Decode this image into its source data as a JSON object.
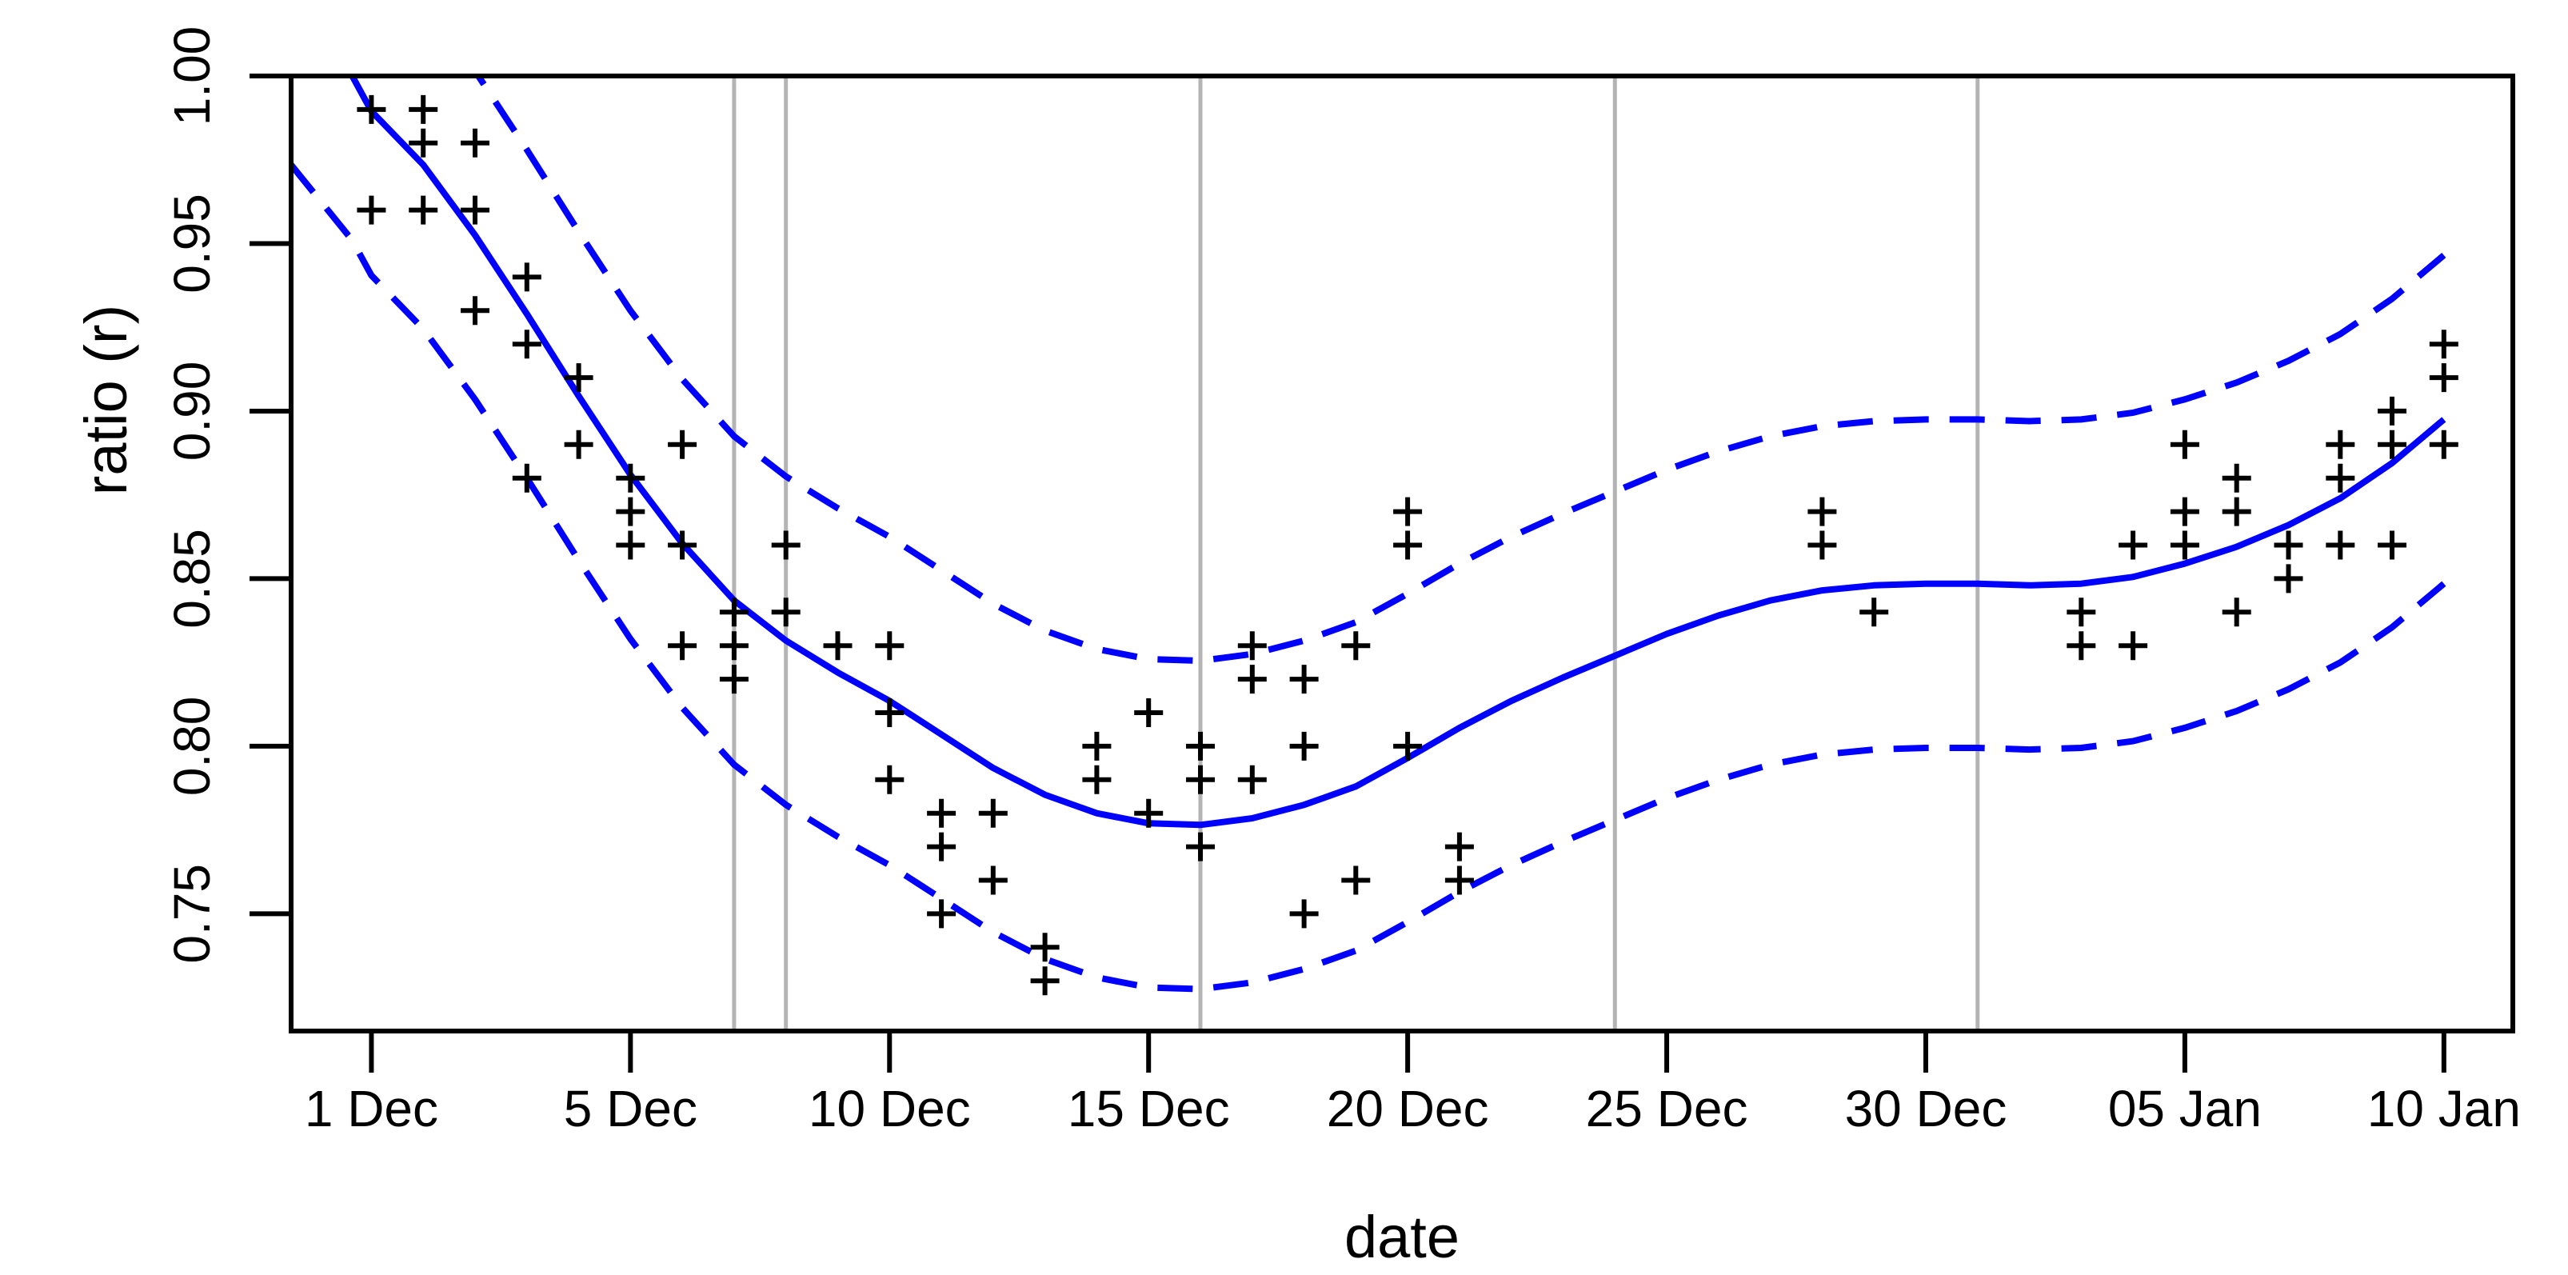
{
  "chart_data": {
    "type": "scatter",
    "title": "",
    "xlabel": "date",
    "ylabel": "ratio (r)",
    "x_unit": "day index (1 = first x tick)",
    "x_tick_labels": [
      "1 Dec",
      "5 Dec",
      "10 Dec",
      "15 Dec",
      "20 Dec",
      "25 Dec",
      "30 Dec",
      "05 Jan",
      "10 Jan"
    ],
    "x_tick_positions": [
      1,
      6,
      11,
      16,
      21,
      26,
      31,
      36,
      41
    ],
    "y_tick_labels": [
      "0.75",
      "0.80",
      "0.85",
      "0.90",
      "0.95",
      "1.00"
    ],
    "y_ticks": [
      0.75,
      0.8,
      0.85,
      0.9,
      0.95,
      1.0
    ],
    "xlim": [
      -0.55,
      42.33
    ],
    "ylim": [
      0.715,
      1.0
    ],
    "grid": "vertical-only",
    "grid_vline_positions": [
      8,
      9,
      17,
      25,
      32
    ],
    "grid_vline_dates": [
      "7 Dec",
      "8 Dec",
      "16 Dec",
      "24 Dec",
      "31 Dec"
    ],
    "legend_position": "none",
    "marker": "plus",
    "colors": {
      "curve": "#0000ff",
      "band": "#0000ff",
      "marker": "#000000",
      "grid": "#b4b4b4",
      "axis": "#000000",
      "background": "#ffffff"
    },
    "points": [
      [
        1,
        0.99
      ],
      [
        1,
        0.96
      ],
      [
        2,
        0.99
      ],
      [
        2,
        0.98
      ],
      [
        2,
        0.96
      ],
      [
        3,
        0.98
      ],
      [
        3,
        0.96
      ],
      [
        3,
        0.93
      ],
      [
        4,
        0.94
      ],
      [
        4,
        0.92
      ],
      [
        4,
        0.88
      ],
      [
        5,
        0.91
      ],
      [
        5,
        0.89
      ],
      [
        6,
        0.88
      ],
      [
        6,
        0.87
      ],
      [
        6,
        0.86
      ],
      [
        7,
        0.89
      ],
      [
        7,
        0.86
      ],
      [
        7,
        0.83
      ],
      [
        8,
        0.84
      ],
      [
        8,
        0.83
      ],
      [
        8,
        0.82
      ],
      [
        9,
        0.86
      ],
      [
        9,
        0.84
      ],
      [
        10,
        0.83
      ],
      [
        11,
        0.83
      ],
      [
        11,
        0.81
      ],
      [
        11,
        0.79
      ],
      [
        12,
        0.78
      ],
      [
        12,
        0.77
      ],
      [
        12,
        0.75
      ],
      [
        13,
        0.78
      ],
      [
        13,
        0.76
      ],
      [
        14,
        0.74
      ],
      [
        14,
        0.73
      ],
      [
        15,
        0.8
      ],
      [
        15,
        0.79
      ],
      [
        16,
        0.81
      ],
      [
        16,
        0.78
      ],
      [
        17,
        0.8
      ],
      [
        17,
        0.79
      ],
      [
        17,
        0.77
      ],
      [
        18,
        0.83
      ],
      [
        18,
        0.82
      ],
      [
        18,
        0.79
      ],
      [
        19,
        0.82
      ],
      [
        19,
        0.8
      ],
      [
        19,
        0.75
      ],
      [
        20,
        0.83
      ],
      [
        20,
        0.76
      ],
      [
        21,
        0.87
      ],
      [
        21,
        0.86
      ],
      [
        21,
        0.8
      ],
      [
        22,
        0.77
      ],
      [
        22,
        0.76
      ],
      [
        29,
        0.87
      ],
      [
        29,
        0.86
      ],
      [
        30,
        0.84
      ],
      [
        34,
        0.84
      ],
      [
        34,
        0.83
      ],
      [
        35,
        0.86
      ],
      [
        35,
        0.83
      ],
      [
        36,
        0.89
      ],
      [
        36,
        0.87
      ],
      [
        36,
        0.86
      ],
      [
        37,
        0.88
      ],
      [
        37,
        0.87
      ],
      [
        37,
        0.84
      ],
      [
        38,
        0.86
      ],
      [
        38,
        0.85
      ],
      [
        39,
        0.89
      ],
      [
        39,
        0.88
      ],
      [
        39,
        0.86
      ],
      [
        40,
        0.9
      ],
      [
        40,
        0.89
      ],
      [
        40,
        0.86
      ],
      [
        41,
        0.92
      ],
      [
        41,
        0.91
      ],
      [
        41,
        0.89
      ]
    ],
    "loess_curve": [
      [
        -0.55,
        1.0225
      ],
      [
        0.63,
        1.0
      ],
      [
        1,
        0.9895
      ],
      [
        2,
        0.9735
      ],
      [
        3,
        0.9525
      ],
      [
        4,
        0.929
      ],
      [
        5,
        0.9045
      ],
      [
        6,
        0.881
      ],
      [
        7,
        0.8605
      ],
      [
        8,
        0.8435
      ],
      [
        9,
        0.8315
      ],
      [
        10,
        0.822
      ],
      [
        11,
        0.8135
      ],
      [
        12,
        0.8035
      ],
      [
        13,
        0.7935
      ],
      [
        14,
        0.7855
      ],
      [
        15,
        0.78
      ],
      [
        16,
        0.777
      ],
      [
        17,
        0.7765
      ],
      [
        18,
        0.7785
      ],
      [
        19,
        0.7825
      ],
      [
        20,
        0.788
      ],
      [
        21,
        0.7965
      ],
      [
        22,
        0.8055
      ],
      [
        23,
        0.8135
      ],
      [
        24,
        0.8205
      ],
      [
        25,
        0.827
      ],
      [
        26,
        0.8335
      ],
      [
        27,
        0.839
      ],
      [
        28,
        0.8435
      ],
      [
        29,
        0.8465
      ],
      [
        30,
        0.848
      ],
      [
        31,
        0.8485
      ],
      [
        32,
        0.8485
      ],
      [
        33,
        0.848
      ],
      [
        34,
        0.8485
      ],
      [
        35,
        0.8505
      ],
      [
        36,
        0.8545
      ],
      [
        37,
        0.8595
      ],
      [
        38,
        0.866
      ],
      [
        39,
        0.874
      ],
      [
        40,
        0.8845
      ],
      [
        41,
        0.8975
      ]
    ],
    "band_offset": 0.049,
    "curve_style": {
      "solid_width": 8,
      "dashed_width": 8,
      "dash_pattern": "44 26"
    }
  }
}
